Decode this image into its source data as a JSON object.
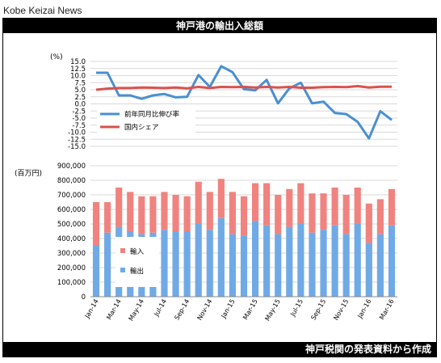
{
  "source_label": "Kobe Keizai News",
  "title": "神戸港の輸出入総額",
  "footer": "神戸税関の発表資料から作成",
  "colors": {
    "yoy": "#4a8fd0",
    "share": "#d9524f",
    "import": "#f0837f",
    "export": "#70aae6"
  },
  "chart_data": [
    {
      "type": "line",
      "ylabel": "(%)",
      "ylim": [
        -15,
        15
      ],
      "ytick_step": 2.5,
      "ytick_labels": [
        "15.0",
        "12.5",
        "10.0",
        "7.5",
        "5.0",
        "2.5",
        "0.0",
        "-2.5",
        "-5.0",
        "-7.5",
        "-10.0",
        "-12.5",
        "-15.0"
      ],
      "legend_position": "inside-lower-left",
      "series": [
        {
          "name": "前年同月比伸び率",
          "color": "#4a8fd0",
          "values": [
            11.0,
            11.0,
            3.0,
            3.0,
            1.8,
            3.0,
            3.5,
            2.3,
            2.5,
            10.2,
            6.0,
            13.3,
            11.2,
            5.2,
            4.8,
            8.5,
            0.2,
            5.5,
            7.5,
            0.2,
            0.8,
            -3.2,
            -3.6,
            -6.3,
            -12.2,
            -2.6,
            -5.7
          ]
        },
        {
          "name": "国内シェア",
          "color": "#d9524f",
          "values": [
            5.0,
            5.4,
            5.6,
            5.6,
            5.8,
            5.7,
            5.6,
            5.8,
            5.5,
            6.0,
            5.6,
            6.0,
            5.9,
            6.0,
            5.8,
            6.0,
            5.8,
            6.0,
            5.7,
            5.7,
            5.9,
            6.0,
            5.9,
            6.3,
            5.8,
            6.1,
            6.1
          ]
        }
      ]
    },
    {
      "type": "bar",
      "stacked": true,
      "ylabel": "(百万円)",
      "ylim": [
        0,
        900000
      ],
      "ytick_labels": [
        "900,000",
        "800,000",
        "700,000",
        "600,000",
        "500,000",
        "400,000",
        "300,000",
        "200,000",
        "100,000",
        "0"
      ],
      "categories": [
        "Jan-14",
        "Feb-14",
        "Mar-14",
        "Apr-14",
        "May-14",
        "Jun-14",
        "Jul-14",
        "Aug-14",
        "Sep-14",
        "Oct-14",
        "Nov-14",
        "Dec-14",
        "Jan-15",
        "Feb-15",
        "Mar-15",
        "Apr-15",
        "May-15",
        "Jun-15",
        "Jul-15",
        "Aug-15",
        "Sep-15",
        "Oct-15",
        "Nov-15",
        "Dec-15",
        "Jan-16",
        "Feb-16",
        "Mar-16"
      ],
      "x_tick_labels": [
        "Jan-14",
        "Mar-14",
        "May-14",
        "Jul-14",
        "Sep-14",
        "Nov-14",
        "Jan-15",
        "Mar-15",
        "May-15",
        "Jul-15",
        "Sep-15",
        "Nov-15",
        "Jan-16",
        "Mar-16"
      ],
      "legend_position": "inside-left",
      "series": [
        {
          "name": "輸出",
          "color": "#70aae6",
          "values": [
            350000,
            440000,
            480000,
            450000,
            430000,
            440000,
            460000,
            450000,
            450000,
            500000,
            460000,
            540000,
            430000,
            420000,
            520000,
            490000,
            430000,
            480000,
            500000,
            440000,
            460000,
            490000,
            430000,
            500000,
            370000,
            430000,
            490000
          ]
        },
        {
          "name": "輸入",
          "color": "#f0837f",
          "values": [
            300000,
            210000,
            270000,
            270000,
            260000,
            250000,
            260000,
            250000,
            240000,
            290000,
            260000,
            270000,
            290000,
            270000,
            260000,
            290000,
            270000,
            260000,
            280000,
            270000,
            250000,
            260000,
            270000,
            250000,
            270000,
            240000,
            250000
          ]
        }
      ]
    }
  ]
}
